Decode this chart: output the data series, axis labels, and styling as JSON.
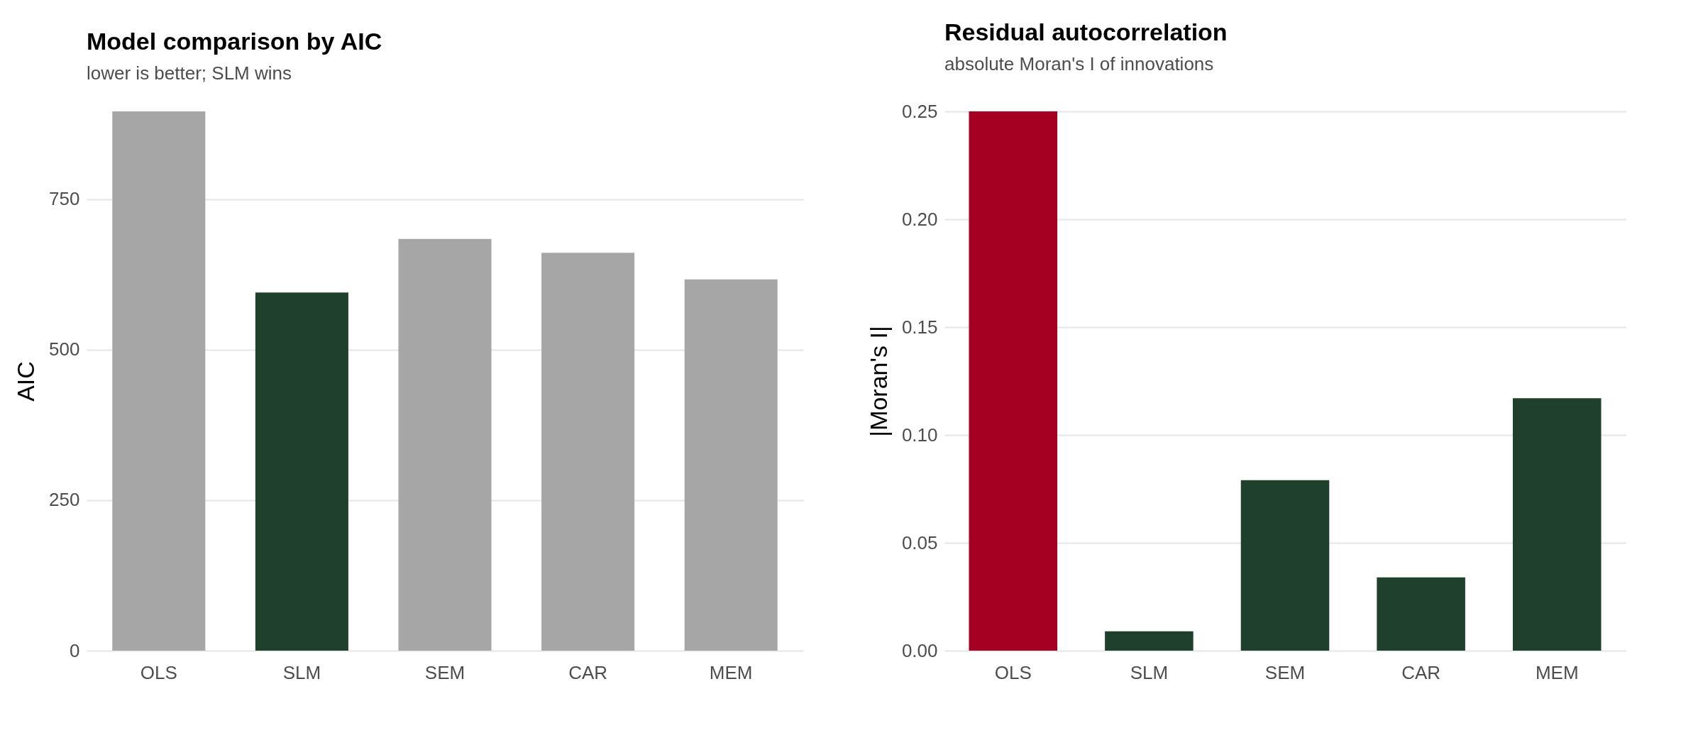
{
  "chart_data": [
    {
      "type": "bar",
      "title": "Model comparison by AIC",
      "subtitle": "lower is better; SLM wins",
      "ylabel": "AIC",
      "categories": [
        "OLS",
        "SLM",
        "SEM",
        "CAR",
        "MEM"
      ],
      "values": [
        896,
        595,
        684,
        661,
        617
      ],
      "colors": [
        "#a6a6a6",
        "#1f402d",
        "#a6a6a6",
        "#a6a6a6",
        "#a6a6a6"
      ],
      "ylim": [
        0,
        896
      ],
      "yticks": [
        0,
        250,
        500,
        750
      ],
      "grid": "y"
    },
    {
      "type": "bar",
      "title": "Residual autocorrelation",
      "subtitle": "absolute Moran's I of innovations",
      "ylabel": "|Moran's I|",
      "categories": [
        "OLS",
        "SLM",
        "SEM",
        "CAR",
        "MEM"
      ],
      "values": [
        0.25,
        0.009,
        0.079,
        0.034,
        0.117
      ],
      "colors": [
        "#a50021",
        "#1f402d",
        "#1f402d",
        "#1f402d",
        "#1f402d"
      ],
      "ylim": [
        0,
        0.25
      ],
      "yticks": [
        {
          "value": 0,
          "label": "0.00"
        },
        {
          "value": 0.05,
          "label": "0.05"
        },
        {
          "value": 0.1,
          "label": "0.10"
        },
        {
          "value": 0.15,
          "label": "0.15"
        },
        {
          "value": 0.2,
          "label": "0.20"
        },
        {
          "value": 0.25,
          "label": "0.25"
        }
      ],
      "grid": "y"
    }
  ]
}
